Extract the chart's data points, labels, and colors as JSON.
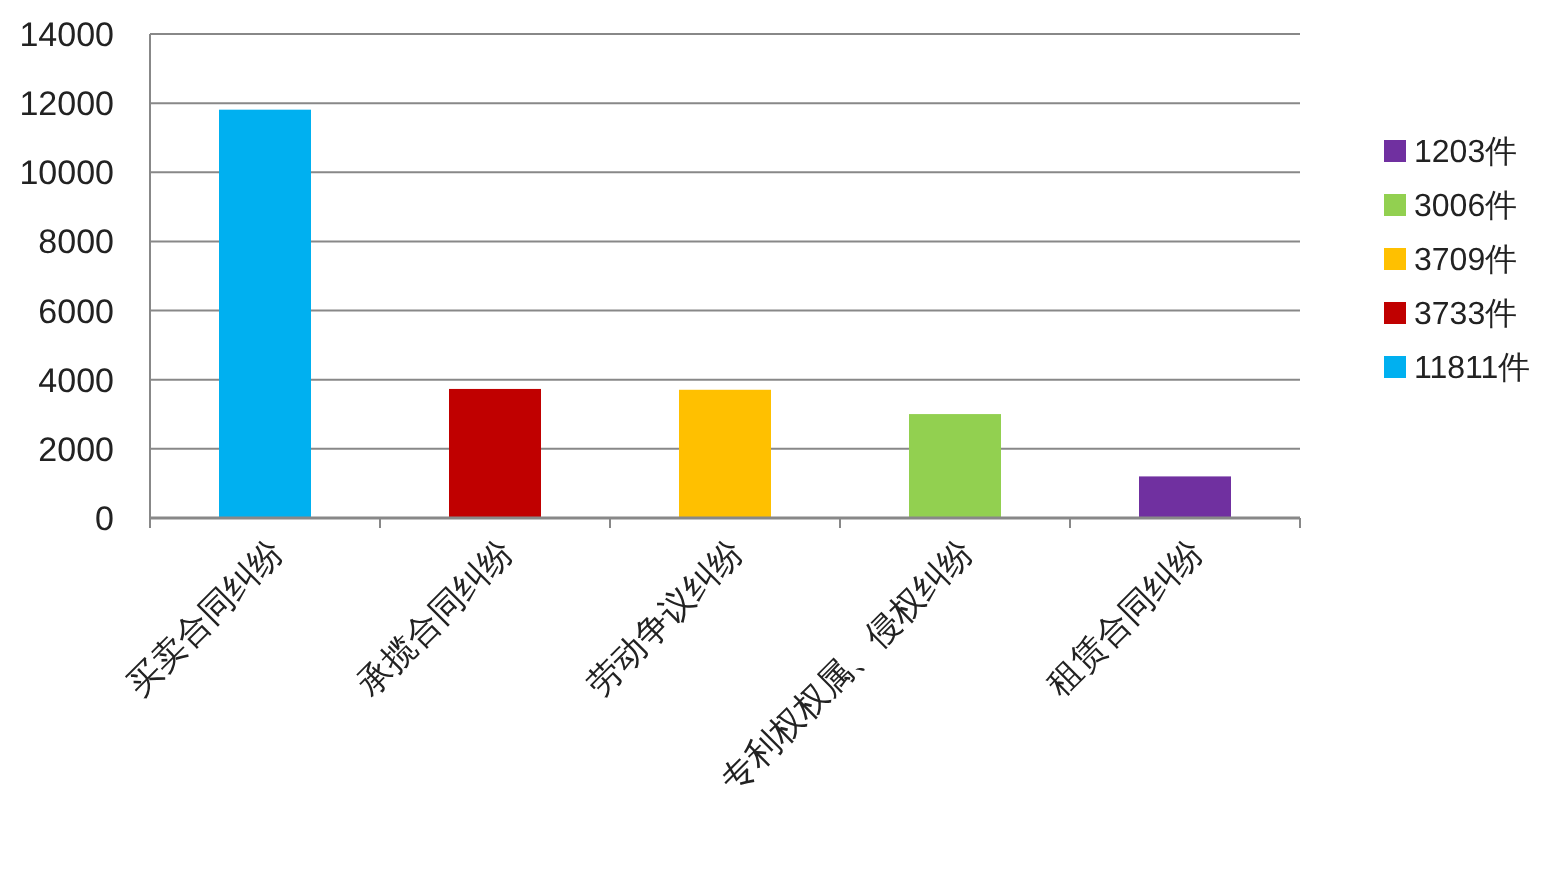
{
  "chart_data": {
    "type": "bar",
    "categories": [
      "买卖合同纠纷",
      "承揽合同纠纷",
      "劳动争议纠纷",
      "专利权权属、侵权纠纷",
      "租赁合同纠纷"
    ],
    "series": [
      {
        "name": "1203件",
        "color": "#7030a0",
        "values": [
          null,
          null,
          null,
          null,
          1203
        ]
      },
      {
        "name": "3006件",
        "color": "#92d050",
        "values": [
          null,
          null,
          null,
          3006,
          null
        ]
      },
      {
        "name": "3709件",
        "color": "#ffc000",
        "values": [
          null,
          null,
          3709,
          null,
          null
        ]
      },
      {
        "name": "3733件",
        "color": "#c00000",
        "values": [
          null,
          3733,
          null,
          null,
          null
        ]
      },
      {
        "name": "11811件",
        "color": "#00b0f0",
        "values": [
          11811,
          null,
          null,
          null,
          null
        ]
      }
    ],
    "ylim": [
      0,
      14000
    ],
    "yticks": [
      0,
      2000,
      4000,
      6000,
      8000,
      10000,
      12000,
      14000
    ],
    "grid": "y",
    "legend": "right"
  }
}
